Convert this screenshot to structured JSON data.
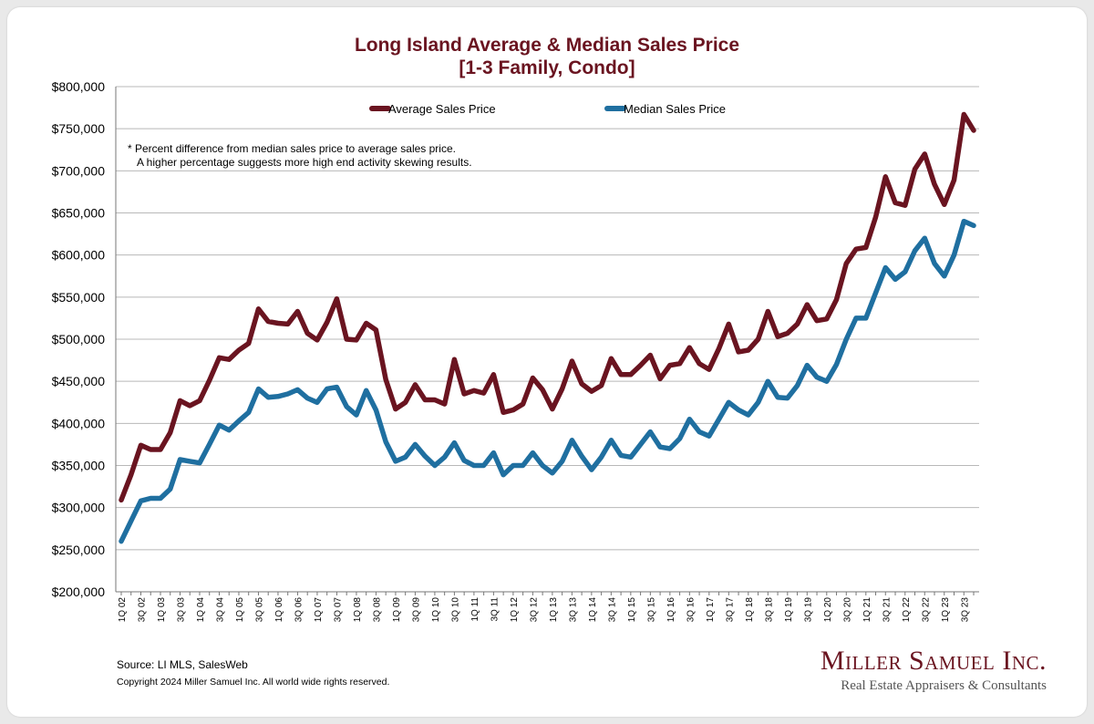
{
  "colors": {
    "average": "#6a1420",
    "median": "#1f6fa0",
    "title": "#6a1420",
    "grid": "#b8b8b8"
  },
  "footnote": {
    "line1": "*  Percent difference from median sales price to average sales price.",
    "line2": "A higher percentage suggests more high end activity skewing results."
  },
  "footer": {
    "source": "Source:  LI MLS, SalesWeb",
    "copyright": "Copyright 2024 Miller Samuel Inc.  All world wide rights reserved."
  },
  "brand": {
    "name": "Miller Samuel Inc.",
    "tagline": "Real Estate Appraisers & Consultants"
  },
  "chart_data": {
    "type": "line",
    "title": "Long Island Average & Median Sales Price",
    "subtitle": "[1-3 Family, Condo]",
    "xlabel": "",
    "ylabel": "",
    "ylim": [
      200000,
      800000
    ],
    "ytick_step": 50000,
    "grid": true,
    "legend_position": "top",
    "x": [
      "1Q 02",
      "2Q 02",
      "3Q 02",
      "4Q 02",
      "1Q 03",
      "2Q 03",
      "3Q 03",
      "4Q 03",
      "1Q 04",
      "2Q 04",
      "3Q 04",
      "4Q 04",
      "1Q 05",
      "2Q 05",
      "3Q 05",
      "4Q 05",
      "1Q 06",
      "2Q 06",
      "3Q 06",
      "4Q 06",
      "1Q 07",
      "2Q 07",
      "3Q 07",
      "4Q 07",
      "1Q 08",
      "2Q 08",
      "3Q 08",
      "4Q 08",
      "1Q 09",
      "2Q 09",
      "3Q 09",
      "4Q 09",
      "1Q 10",
      "2Q 10",
      "3Q 10",
      "4Q 10",
      "1Q 11",
      "2Q 11",
      "3Q 11",
      "4Q 11",
      "1Q 12",
      "2Q 12",
      "3Q 12",
      "4Q 12",
      "1Q 13",
      "2Q 13",
      "3Q 13",
      "4Q 13",
      "1Q 14",
      "2Q 14",
      "3Q 14",
      "4Q 14",
      "1Q 15",
      "2Q 15",
      "3Q 15",
      "4Q 15",
      "1Q 16",
      "2Q 16",
      "3Q 16",
      "4Q 16",
      "1Q 17",
      "2Q 17",
      "3Q 17",
      "4Q 17",
      "1Q 18",
      "2Q 18",
      "3Q 18",
      "4Q 18",
      "1Q 19",
      "2Q 19",
      "3Q 19",
      "4Q 19",
      "1Q 20",
      "2Q 20",
      "3Q 20",
      "4Q 20",
      "1Q 21",
      "2Q 21",
      "3Q 21",
      "4Q 21",
      "1Q 22",
      "2Q 22",
      "3Q 22",
      "4Q 22",
      "1Q 23",
      "2Q 23",
      "3Q 23",
      "4Q 23"
    ],
    "x_tick_labels": [
      "1Q 02",
      "3Q 02",
      "1Q 03",
      "3Q 03",
      "1Q 04",
      "3Q 04",
      "1Q 05",
      "3Q 05",
      "1Q 06",
      "3Q 06",
      "1Q 07",
      "3Q 07",
      "1Q 08",
      "3Q 08",
      "1Q 09",
      "3Q 09",
      "1Q 10",
      "3Q 10",
      "1Q 11",
      "3Q 11",
      "1Q 12",
      "3Q 12",
      "1Q 13",
      "3Q 13",
      "1Q 14",
      "3Q 14",
      "1Q 15",
      "3Q 15",
      "1Q 16",
      "3Q 16",
      "1Q 17",
      "3Q 17",
      "1Q 18",
      "3Q 18",
      "1Q 19",
      "3Q 19",
      "1Q 20",
      "3Q 20",
      "1Q 21",
      "3Q 21",
      "1Q 22",
      "3Q 22",
      "1Q 23",
      "3Q 23"
    ],
    "series": [
      {
        "name": "Average Sales Price",
        "values": [
          309000,
          339000,
          374000,
          369000,
          369000,
          389000,
          427000,
          421000,
          427000,
          451000,
          478000,
          476000,
          487000,
          495000,
          536000,
          521000,
          519000,
          518000,
          533000,
          507000,
          499000,
          520000,
          548000,
          500000,
          499000,
          519000,
          511000,
          452000,
          417000,
          425000,
          446000,
          428000,
          428000,
          423000,
          476000,
          435000,
          439000,
          436000,
          458000,
          413000,
          416000,
          423000,
          454000,
          440000,
          417000,
          441000,
          474000,
          447000,
          438000,
          445000,
          477000,
          458000,
          458000,
          469000,
          481000,
          453000,
          469000,
          471000,
          490000,
          471000,
          464000,
          489000,
          518000,
          485000,
          487000,
          500000,
          533000,
          503000,
          507000,
          518000,
          541000,
          522000,
          524000,
          547000,
          590000,
          607000,
          609000,
          645000,
          693000,
          662000,
          659000,
          702000,
          720000,
          684000,
          660000,
          689000,
          767000,
          748000
        ]
      },
      {
        "name": "Median Sales Price",
        "values": [
          260000,
          284000,
          308000,
          311000,
          311000,
          322000,
          357000,
          355000,
          353000,
          375000,
          398000,
          392000,
          403000,
          413000,
          441000,
          431000,
          432000,
          435000,
          440000,
          430000,
          425000,
          441000,
          443000,
          420000,
          410000,
          439000,
          416000,
          378000,
          355000,
          360000,
          375000,
          361000,
          350000,
          360000,
          377000,
          356000,
          350000,
          350000,
          365000,
          339000,
          350000,
          350000,
          365000,
          350000,
          341000,
          355000,
          380000,
          361000,
          345000,
          360000,
          380000,
          362000,
          360000,
          375000,
          390000,
          372000,
          370000,
          382000,
          405000,
          390000,
          385000,
          405000,
          425000,
          416000,
          410000,
          425000,
          450000,
          431000,
          430000,
          445000,
          469000,
          455000,
          450000,
          470000,
          500000,
          525000,
          525000,
          555000,
          585000,
          571000,
          580000,
          605000,
          620000,
          590000,
          575000,
          600000,
          640000,
          635000
        ]
      }
    ]
  }
}
